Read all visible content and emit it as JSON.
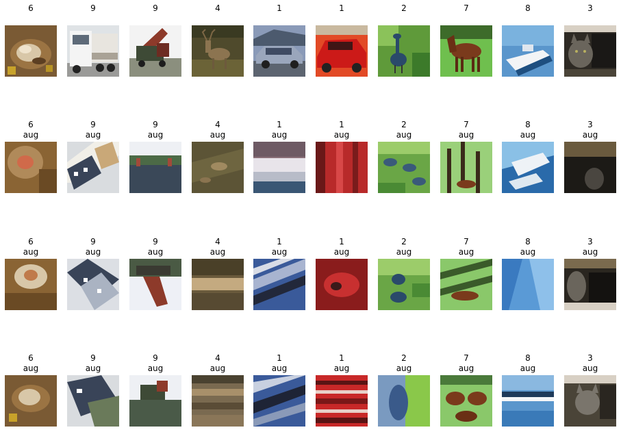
{
  "rows": [
    {
      "cells": [
        {
          "label": "6",
          "aug": "",
          "subject": "frog"
        },
        {
          "label": "9",
          "aug": "",
          "subject": "truck"
        },
        {
          "label": "9",
          "aug": "",
          "subject": "truck"
        },
        {
          "label": "4",
          "aug": "",
          "subject": "deer"
        },
        {
          "label": "1",
          "aug": "",
          "subject": "car"
        },
        {
          "label": "1",
          "aug": "",
          "subject": "car"
        },
        {
          "label": "2",
          "aug": "",
          "subject": "bird"
        },
        {
          "label": "7",
          "aug": "",
          "subject": "horse"
        },
        {
          "label": "8",
          "aug": "",
          "subject": "boat"
        },
        {
          "label": "3",
          "aug": "",
          "subject": "cat"
        }
      ]
    },
    {
      "cells": [
        {
          "label": "6",
          "aug": "aug",
          "subject": "frog"
        },
        {
          "label": "9",
          "aug": "aug",
          "subject": "truck"
        },
        {
          "label": "9",
          "aug": "aug",
          "subject": "truck"
        },
        {
          "label": "4",
          "aug": "aug",
          "subject": "deer"
        },
        {
          "label": "1",
          "aug": "aug",
          "subject": "car"
        },
        {
          "label": "1",
          "aug": "aug",
          "subject": "car"
        },
        {
          "label": "2",
          "aug": "aug",
          "subject": "bird"
        },
        {
          "label": "7",
          "aug": "aug",
          "subject": "horse"
        },
        {
          "label": "8",
          "aug": "aug",
          "subject": "boat"
        },
        {
          "label": "3",
          "aug": "aug",
          "subject": "cat"
        }
      ]
    },
    {
      "cells": [
        {
          "label": "6",
          "aug": "aug",
          "subject": "frog"
        },
        {
          "label": "9",
          "aug": "aug",
          "subject": "truck"
        },
        {
          "label": "9",
          "aug": "aug",
          "subject": "truck"
        },
        {
          "label": "4",
          "aug": "aug",
          "subject": "deer"
        },
        {
          "label": "1",
          "aug": "aug",
          "subject": "car"
        },
        {
          "label": "1",
          "aug": "aug",
          "subject": "car"
        },
        {
          "label": "2",
          "aug": "aug",
          "subject": "bird"
        },
        {
          "label": "7",
          "aug": "aug",
          "subject": "horse"
        },
        {
          "label": "8",
          "aug": "aug",
          "subject": "boat"
        },
        {
          "label": "3",
          "aug": "aug",
          "subject": "cat"
        }
      ]
    },
    {
      "cells": [
        {
          "label": "6",
          "aug": "aug",
          "subject": "frog"
        },
        {
          "label": "9",
          "aug": "aug",
          "subject": "truck"
        },
        {
          "label": "9",
          "aug": "aug",
          "subject": "truck"
        },
        {
          "label": "4",
          "aug": "aug",
          "subject": "deer"
        },
        {
          "label": "1",
          "aug": "aug",
          "subject": "car"
        },
        {
          "label": "1",
          "aug": "aug",
          "subject": "car"
        },
        {
          "label": "2",
          "aug": "aug",
          "subject": "bird"
        },
        {
          "label": "7",
          "aug": "aug",
          "subject": "horse"
        },
        {
          "label": "8",
          "aug": "aug",
          "subject": "boat"
        },
        {
          "label": "3",
          "aug": "aug",
          "subject": "cat"
        }
      ]
    }
  ]
}
